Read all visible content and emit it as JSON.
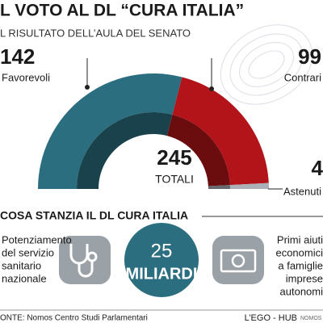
{
  "chart_data": {
    "type": "semi-donut",
    "title": "L VOTO AL DL “CURA ITALIA”",
    "subtitle": "L RISULTATO DELL’AULA DEL SENATO",
    "categories": [
      "Favorevoli",
      "Contrari",
      "Astenuti"
    ],
    "values": [
      142,
      99,
      4
    ],
    "colors": [
      "#2b6e80",
      "#b3141a",
      "#aab0b6"
    ],
    "total": 245,
    "total_label": "TOTALI",
    "section_title": "COSA STANZIA IL DL CURA ITALIA",
    "amount": "25",
    "amount_unit": "MILIARDI",
    "left_text": [
      "Potenziamento",
      "del servizio",
      "sanitario",
      "nazionale"
    ],
    "right_text": [
      "Primi aiuti",
      "economici",
      "a famiglie",
      "imprese",
      "autonomi"
    ],
    "source": "ONTE: Nomos Centro Studi Parlamentari",
    "credit": "L’EGO - HUB",
    "credit_partner": "NOMOS"
  }
}
